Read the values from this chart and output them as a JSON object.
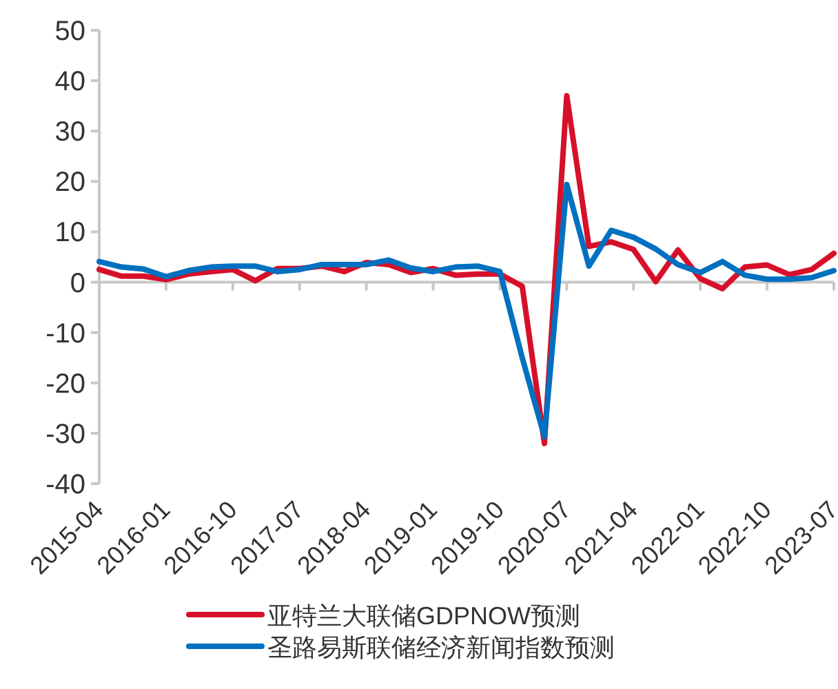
{
  "chart_data": {
    "type": "line",
    "categories": [
      "2015-04",
      null,
      null,
      "2016-01",
      null,
      null,
      "2016-10",
      null,
      null,
      "2017-07",
      null,
      null,
      "2018-04",
      null,
      null,
      "2019-01",
      null,
      null,
      "2019-10",
      null,
      null,
      "2020-07",
      null,
      null,
      "2021-04",
      null,
      null,
      "2022-01",
      null,
      null,
      "2022-10",
      null,
      null,
      "2023-07"
    ],
    "series": [
      {
        "name": "亚特兰大联储GDPNOW预测",
        "color": "#d7102a",
        "values": [
          2.5,
          1.2,
          1.2,
          0.5,
          1.6,
          2.1,
          2.5,
          0.3,
          2.7,
          2.7,
          3.2,
          2.1,
          3.9,
          3.5,
          1.9,
          2.7,
          1.4,
          1.6,
          1.6,
          -0.8,
          -32,
          37,
          7.1,
          8,
          6.5,
          0.1,
          6.4,
          0.7,
          -1.3,
          3,
          3.4,
          1.5,
          2.5,
          5.7
        ]
      },
      {
        "name": "圣路易斯联储经济新闻指数预测",
        "color": "#0070c0",
        "values": [
          4.1,
          3,
          2.6,
          1.1,
          2.3,
          3,
          3.2,
          3.2,
          2.1,
          2.5,
          3.5,
          3.5,
          3.5,
          4.4,
          2.8,
          2.1,
          3,
          3.2,
          2.1,
          -15,
          -30.7,
          19.4,
          3.2,
          10.3,
          8.9,
          6.6,
          3.5,
          1.9,
          4.1,
          1.4,
          0.6,
          0.6,
          0.9,
          2.3
        ]
      }
    ],
    "ylim": [
      -40,
      50
    ],
    "yticks": [
      -40,
      -30,
      -20,
      -10,
      0,
      10,
      20,
      30,
      40,
      50
    ],
    "legend": "bottom"
  }
}
